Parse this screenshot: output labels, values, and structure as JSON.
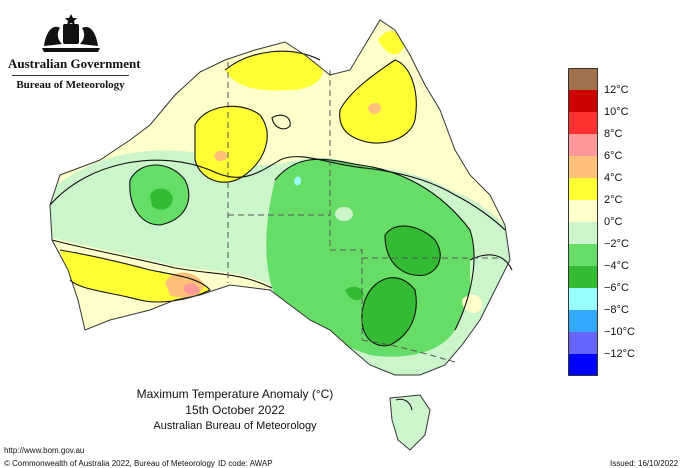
{
  "header": {
    "government": "Australian Government",
    "bureau": "Bureau of Meteorology"
  },
  "title": {
    "line1": "Maximum Temperature Anomaly (°C)",
    "line2": "15th October 2022",
    "line3": "Australian Bureau of Meteorology"
  },
  "legend": {
    "items": [
      {
        "label": "",
        "color": "#a0714a"
      },
      {
        "label": "12°C",
        "color": "#cc0000"
      },
      {
        "label": "10°C",
        "color": "#ff3030"
      },
      {
        "label": "8°C",
        "color": "#ff9999"
      },
      {
        "label": "6°C",
        "color": "#ffc07a"
      },
      {
        "label": "4°C",
        "color": "#ffff33"
      },
      {
        "label": "2°C",
        "color": "#ffffcc"
      },
      {
        "label": "0°C",
        "color": "#ccf5cc"
      },
      {
        "label": "−2°C",
        "color": "#66dd66"
      },
      {
        "label": "−4°C",
        "color": "#33bb33"
      },
      {
        "label": "−6°C",
        "color": "#99ffff"
      },
      {
        "label": "−8°C",
        "color": "#33aaff"
      },
      {
        "label": "−10°C",
        "color": "#6666ff"
      },
      {
        "label": "−12°C",
        "color": "#0000ff"
      }
    ]
  },
  "footer": {
    "url": "http://www.bom.gov.au",
    "copyright": "© Commonwealth of Australia 2022, Bureau of Meteorology",
    "id_code": "ID code: AWAP",
    "issued": "Issued: 16/10/2022"
  }
}
